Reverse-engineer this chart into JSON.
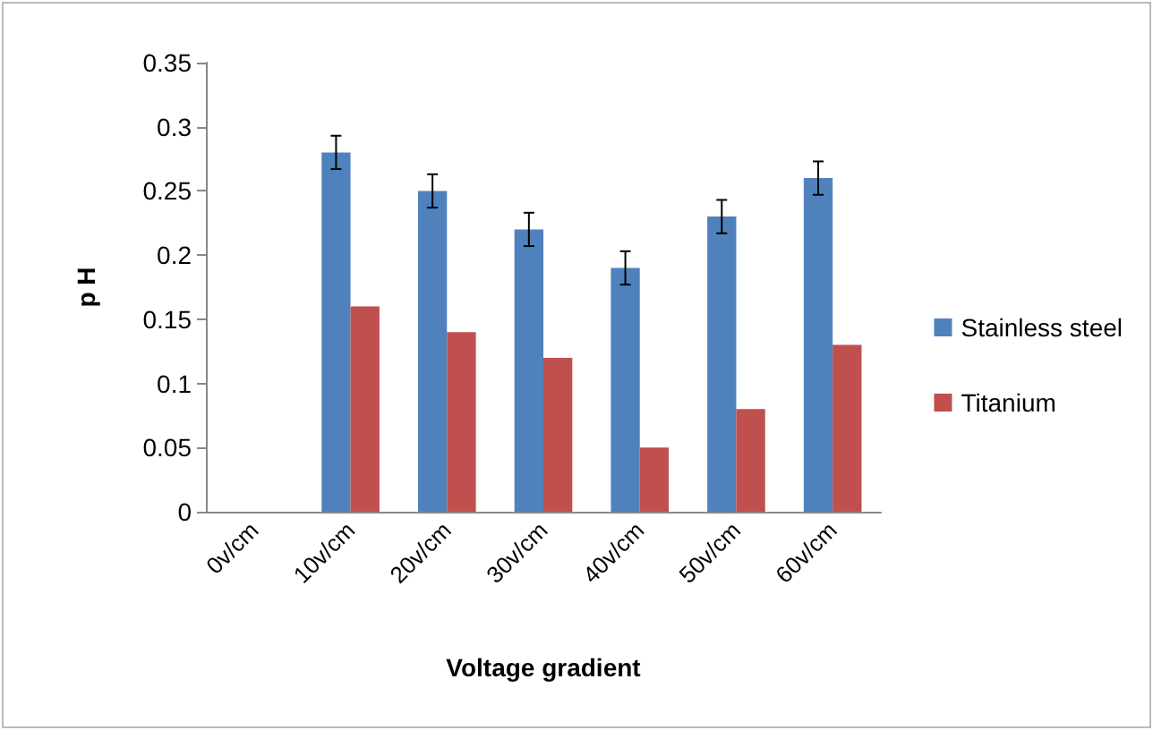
{
  "chart_data": {
    "type": "bar",
    "xlabel": "Voltage gradient",
    "ylabel": "p H",
    "categories": [
      "0v/cm",
      "10v/cm",
      "20v/cm",
      "30v/cm",
      "40v/cm",
      "50v/cm",
      "60v/cm"
    ],
    "series": [
      {
        "name": "Stainless steel",
        "color": "#4f81bd",
        "values": [
          0,
          0.28,
          0.25,
          0.22,
          0.19,
          0.23,
          0.26
        ],
        "errors": [
          null,
          0.013,
          0.013,
          0.013,
          0.013,
          0.013,
          0.013
        ]
      },
      {
        "name": "Titanium",
        "color": "#c0504d",
        "values": [
          0,
          0.16,
          0.14,
          0.12,
          0.05,
          0.08,
          0.13
        ]
      }
    ],
    "ylim": [
      0,
      0.35
    ],
    "yticks": [
      0,
      0.05,
      0.1,
      0.15,
      0.2,
      0.25,
      0.3,
      0.35
    ],
    "grid": false,
    "legend": "right"
  }
}
